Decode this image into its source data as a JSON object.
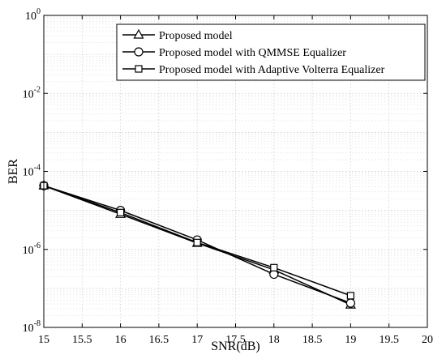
{
  "chart_data": {
    "type": "line",
    "title": "",
    "xlabel": "SNR(dB)",
    "ylabel": "BER",
    "xlim": [
      15,
      20
    ],
    "ylim": [
      1e-08,
      1
    ],
    "yscale": "log",
    "grid": true,
    "legend_position": "top-right",
    "x_ticks": [
      "15",
      "15.5",
      "16",
      "16.5",
      "17",
      "17.5",
      "18",
      "18.5",
      "19",
      "19.5",
      "20"
    ],
    "y_ticks": [
      {
        "base": "10",
        "exp": "-8",
        "value": 1e-08
      },
      {
        "base": "10",
        "exp": "-6",
        "value": 1e-06
      },
      {
        "base": "10",
        "exp": "-4",
        "value": 0.0001
      },
      {
        "base": "10",
        "exp": "-2",
        "value": 0.01
      },
      {
        "base": "10",
        "exp": "0",
        "value": 1
      }
    ],
    "x": [
      15,
      16,
      17,
      18,
      19
    ],
    "series": [
      {
        "name": "Proposed model",
        "marker": "triangle",
        "values": [
          4.3e-05,
          8e-06,
          1.45e-06,
          3e-07,
          3.8e-08
        ]
      },
      {
        "name": "Proposed model with QMMSE Equalizer",
        "marker": "circle",
        "values": [
          4.3e-05,
          1e-05,
          1.75e-06,
          2.3e-07,
          4.2e-08
        ]
      },
      {
        "name": "Proposed model with Adaptive Volterra Equalizer",
        "marker": "square",
        "values": [
          4.3e-05,
          8.8e-06,
          1.5e-06,
          3.4e-07,
          6.5e-08
        ]
      }
    ]
  }
}
